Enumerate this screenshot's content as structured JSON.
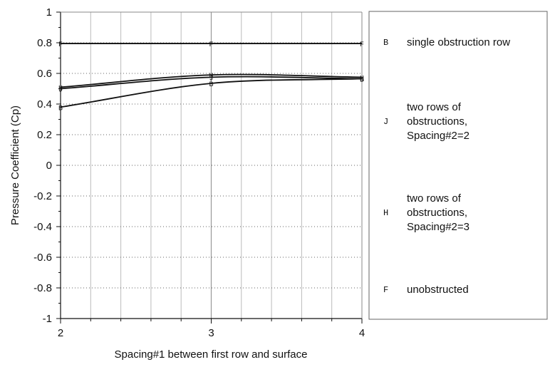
{
  "chart_data": {
    "type": "line",
    "title": "",
    "xlabel": "Spacing#1 between first row and surface",
    "ylabel": "Pressure Coefficient (Cp)",
    "xlim": [
      2,
      4
    ],
    "ylim": [
      -1,
      1
    ],
    "x_ticks": [
      "2",
      "3",
      "4"
    ],
    "y_ticks": [
      "1",
      "0.8",
      "0.6",
      "0.4",
      "0.2",
      "0",
      "-0.2",
      "-0.4",
      "-0.6",
      "-0.8",
      "-1"
    ],
    "x": [
      2,
      3,
      4
    ],
    "grid": true,
    "legend_position": "right",
    "series": [
      {
        "name": "single obstruction row",
        "marker": "B",
        "values": [
          0.38,
          0.535,
          0.565
        ]
      },
      {
        "name": "two rows of obstructions, Spacing#2=2",
        "marker": "J",
        "values": [
          0.5,
          0.575,
          0.565
        ]
      },
      {
        "name": "two rows of obstructions, Spacing#2=3",
        "marker": "H",
        "values": [
          0.51,
          0.59,
          0.575
        ]
      },
      {
        "name": "unobstructed",
        "marker": "F",
        "values": [
          0.795,
          0.795,
          0.795
        ]
      }
    ],
    "legend": [
      {
        "marker": "B",
        "lines": [
          "single obstruction row"
        ]
      },
      {
        "marker": "J",
        "lines": [
          "two rows of",
          "obstructions,",
          "Spacing#2=2"
        ]
      },
      {
        "marker": "H",
        "lines": [
          "two rows of",
          "obstructions,",
          "Spacing#2=3"
        ]
      },
      {
        "marker": "F",
        "lines": [
          "unobstructed"
        ]
      }
    ]
  }
}
